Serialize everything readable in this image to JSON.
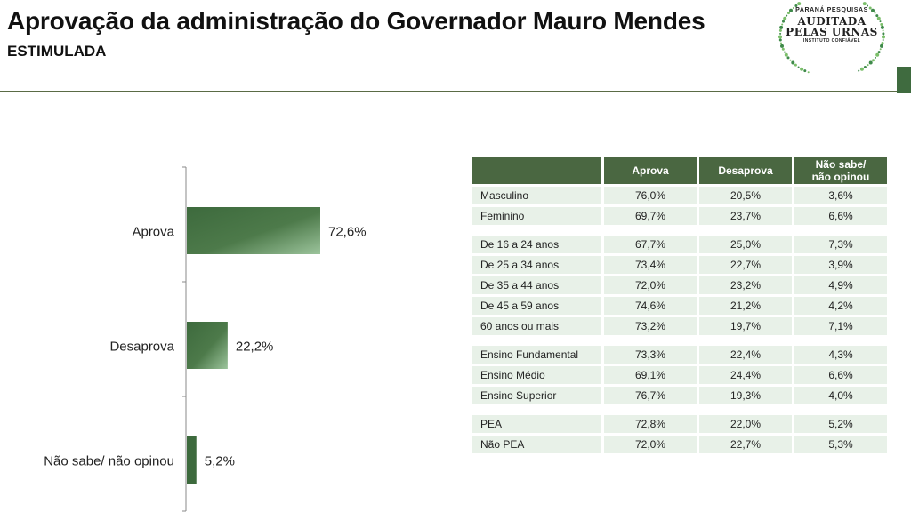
{
  "header": {
    "title": "Aprovação da administração do Governador Mauro Mendes",
    "subtitle": "ESTIMULADA"
  },
  "logo": {
    "line1": "PARANÁ PESQUISAS",
    "line2": "AUDITADA",
    "line3": "PELAS URNAS",
    "line4": "INSTITUTO CONFIÁVEL"
  },
  "colors": {
    "accent": "#4a6741",
    "row_bg": "#e8f1e8",
    "bar_dark": "#3d6a3d",
    "bar_light": "#9cc49c"
  },
  "chart_data": {
    "type": "bar",
    "orientation": "horizontal",
    "categories": [
      "Aprova",
      "Desaprova",
      "Não sabe/ não opinou"
    ],
    "values": [
      72.6,
      22.2,
      5.2
    ],
    "value_labels": [
      "72,6%",
      "22,2%",
      "5,2%"
    ]
  },
  "table": {
    "headers": [
      "",
      "Aprova",
      "Desaprova",
      "Não sabe/ não opinou"
    ],
    "header_lines": [
      [
        ""
      ],
      [
        "Aprova"
      ],
      [
        "Desaprova"
      ],
      [
        "Não sabe/",
        "não opinou"
      ]
    ],
    "groups": [
      [
        [
          "Masculino",
          "76,0%",
          "20,5%",
          "3,6%"
        ],
        [
          "Feminino",
          "69,7%",
          "23,7%",
          "6,6%"
        ]
      ],
      [
        [
          "De 16 a 24 anos",
          "67,7%",
          "25,0%",
          "7,3%"
        ],
        [
          "De 25 a 34 anos",
          "73,4%",
          "22,7%",
          "3,9%"
        ],
        [
          "De 35 a 44 anos",
          "72,0%",
          "23,2%",
          "4,9%"
        ],
        [
          "De 45 a 59 anos",
          "74,6%",
          "21,2%",
          "4,2%"
        ],
        [
          "60 anos ou mais",
          "73,2%",
          "19,7%",
          "7,1%"
        ]
      ],
      [
        [
          "Ensino Fundamental",
          "73,3%",
          "22,4%",
          "4,3%"
        ],
        [
          "Ensino Médio",
          "69,1%",
          "24,4%",
          "6,6%"
        ],
        [
          "Ensino Superior",
          "76,7%",
          "19,3%",
          "4,0%"
        ]
      ],
      [
        [
          "PEA",
          "72,8%",
          "22,0%",
          "5,2%"
        ],
        [
          "Não PEA",
          "72,0%",
          "22,7%",
          "5,3%"
        ]
      ]
    ]
  }
}
